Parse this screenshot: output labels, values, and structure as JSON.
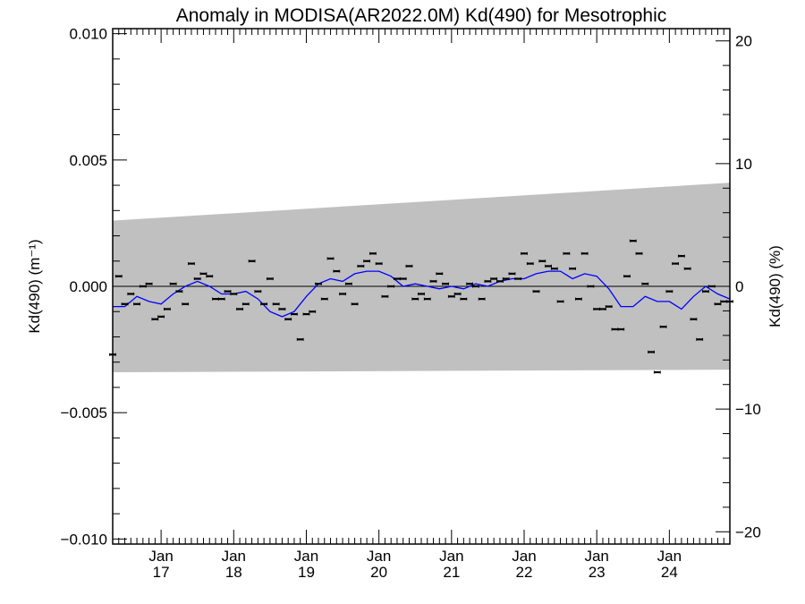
{
  "chart_data": {
    "type": "scatter",
    "title": "Anomaly in MODISA(AR2022.0M) Kd(490) for Mesotrophic",
    "ylabel_left": "Kd(490) (m⁻¹)",
    "ylabel_right": "Kd(490) (%)",
    "xlabel": "",
    "ylim_left": [
      -0.0102,
      0.0102
    ],
    "ylim_right": [
      -21,
      21
    ],
    "xlim": [
      "2016-05",
      "2024-11"
    ],
    "grid": false,
    "left_ticks": [
      "0.010",
      "0.005",
      "0.000",
      "−0.005",
      "−0.010"
    ],
    "left_tick_values": [
      0.01,
      0.005,
      0.0,
      -0.005,
      -0.01
    ],
    "right_ticks": [
      "20",
      "10",
      "0",
      "−10",
      "−20"
    ],
    "right_tick_values": [
      20,
      10,
      0,
      -10,
      -20
    ],
    "x_ticks": [
      {
        "month": "Jan",
        "year": "17",
        "date": "2017-01"
      },
      {
        "month": "Jan",
        "year": "18",
        "date": "2018-01"
      },
      {
        "month": "Jan",
        "year": "19",
        "date": "2019-01"
      },
      {
        "month": "Jan",
        "year": "20",
        "date": "2020-01"
      },
      {
        "month": "Jan",
        "year": "21",
        "date": "2021-01"
      },
      {
        "month": "Jan",
        "year": "22",
        "date": "2022-01"
      },
      {
        "month": "Jan",
        "year": "23",
        "date": "2023-01"
      },
      {
        "month": "Jan",
        "year": "24",
        "date": "2024-01"
      }
    ],
    "band": {
      "color": "#c0c0c0",
      "upper": [
        [
          "2016-05",
          0.0026
        ],
        [
          "2024-11",
          0.0041
        ]
      ],
      "lower": [
        [
          "2016-05",
          -0.0034
        ],
        [
          "2024-11",
          -0.0033
        ]
      ]
    },
    "zero_line": 0.0,
    "colors": {
      "points": "#000000",
      "smooth": "#0000ff",
      "band": "#c0c0c0"
    },
    "series": [
      {
        "type": "scatter",
        "marker": "errorbar",
        "dates": [
          "2016-05",
          "2016-06",
          "2016-07",
          "2016-08",
          "2016-09",
          "2016-10",
          "2016-11",
          "2016-12",
          "2017-01",
          "2017-02",
          "2017-03",
          "2017-04",
          "2017-05",
          "2017-06",
          "2017-07",
          "2017-08",
          "2017-09",
          "2017-10",
          "2017-11",
          "2017-12",
          "2018-01",
          "2018-02",
          "2018-03",
          "2018-04",
          "2018-05",
          "2018-06",
          "2018-07",
          "2018-08",
          "2018-09",
          "2018-10",
          "2018-11",
          "2018-12",
          "2019-01",
          "2019-02",
          "2019-03",
          "2019-04",
          "2019-05",
          "2019-06",
          "2019-07",
          "2019-08",
          "2019-09",
          "2019-10",
          "2019-11",
          "2019-12",
          "2020-01",
          "2020-02",
          "2020-03",
          "2020-04",
          "2020-05",
          "2020-06",
          "2020-07",
          "2020-08",
          "2020-09",
          "2020-10",
          "2020-11",
          "2020-12",
          "2021-01",
          "2021-02",
          "2021-03",
          "2021-04",
          "2021-05",
          "2021-06",
          "2021-07",
          "2021-08",
          "2021-09",
          "2021-10",
          "2021-11",
          "2021-12",
          "2022-01",
          "2022-02",
          "2022-03",
          "2022-04",
          "2022-05",
          "2022-06",
          "2022-07",
          "2022-08",
          "2022-09",
          "2022-10",
          "2022-11",
          "2022-12",
          "2023-01",
          "2023-02",
          "2023-03",
          "2023-04",
          "2023-05",
          "2023-06",
          "2023-07",
          "2023-08",
          "2023-09",
          "2023-10",
          "2023-11",
          "2023-12",
          "2024-01",
          "2024-02",
          "2024-03",
          "2024-04",
          "2024-05",
          "2024-06",
          "2024-07",
          "2024-08",
          "2024-09",
          "2024-10",
          "2024-11"
        ],
        "values": [
          -0.0027,
          0.0004,
          -0.0007,
          -0.0003,
          -0.0007,
          0.0,
          0.0001,
          -0.0013,
          -0.0012,
          -0.0009,
          0.0001,
          -0.0002,
          -0.0007,
          0.0009,
          0.0003,
          0.0005,
          0.0004,
          -0.0005,
          -0.0005,
          -0.0002,
          -0.0003,
          -0.0009,
          -0.0007,
          0.001,
          -0.0002,
          -0.0007,
          0.0003,
          -0.0007,
          -0.0009,
          -0.0013,
          -0.0011,
          -0.0021,
          -0.0011,
          -0.001,
          0.0001,
          -0.0005,
          0.0011,
          0.0006,
          -0.0003,
          0.0001,
          -0.0007,
          0.0008,
          0.001,
          0.0013,
          0.0009,
          -0.0004,
          0.0,
          0.0003,
          0.0003,
          0.0008,
          -0.0005,
          -0.0003,
          -0.0005,
          0.0002,
          0.0005,
          0.0001,
          -0.0004,
          -0.0003,
          -0.0005,
          0.0001,
          0.0,
          -0.0005,
          0.0002,
          0.0003,
          0.0002,
          0.0003,
          0.0005,
          0.0003,
          0.0013,
          0.0009,
          -0.0002,
          0.001,
          0.0008,
          0.0007,
          -0.0006,
          0.0013,
          0.0007,
          -0.0005,
          0.0013,
          0.0,
          -0.0009,
          -0.0009,
          -0.0008,
          -0.0017,
          -0.0017,
          0.0004,
          0.0018,
          0.0013,
          0.0001,
          -0.0026,
          -0.0034,
          -0.0016,
          -0.0002,
          0.0009,
          0.0012,
          0.0007,
          -0.0013,
          -0.0021,
          -0.0002,
          0.0,
          -0.0007,
          -0.0006,
          -0.0006
        ]
      },
      {
        "type": "line",
        "style": "smoothed",
        "dates": [
          "2016-05",
          "2016-07",
          "2016-09",
          "2016-11",
          "2017-01",
          "2017-03",
          "2017-05",
          "2017-07",
          "2017-09",
          "2017-11",
          "2018-01",
          "2018-03",
          "2018-05",
          "2018-07",
          "2018-09",
          "2018-11",
          "2019-01",
          "2019-03",
          "2019-05",
          "2019-07",
          "2019-09",
          "2019-11",
          "2020-01",
          "2020-03",
          "2020-05",
          "2020-07",
          "2020-09",
          "2020-11",
          "2021-01",
          "2021-03",
          "2021-05",
          "2021-07",
          "2021-09",
          "2021-11",
          "2022-01",
          "2022-03",
          "2022-05",
          "2022-07",
          "2022-09",
          "2022-11",
          "2023-01",
          "2023-03",
          "2023-05",
          "2023-07",
          "2023-09",
          "2023-11",
          "2024-01",
          "2024-03",
          "2024-05",
          "2024-07",
          "2024-09",
          "2024-11"
        ],
        "values": [
          -0.0008,
          -0.0008,
          -0.0004,
          -0.0006,
          -0.0007,
          -0.0003,
          0.0,
          0.0002,
          0.0,
          -0.0003,
          -0.0003,
          -0.0002,
          -0.0005,
          -0.001,
          -0.0012,
          -0.001,
          -0.0004,
          0.0001,
          0.0003,
          0.0002,
          0.0005,
          0.0006,
          0.0006,
          0.0004,
          0.0,
          0.0001,
          0.0,
          -0.0001,
          0.0,
          -0.0001,
          0.0001,
          0.0,
          0.0002,
          0.0003,
          0.0003,
          0.0005,
          0.0006,
          0.0006,
          0.0003,
          0.0005,
          0.0004,
          -0.0001,
          -0.0008,
          -0.0008,
          -0.0004,
          -0.0006,
          -0.0006,
          -0.0009,
          -0.0004,
          0.0,
          -0.0003,
          -0.0005
        ]
      }
    ]
  }
}
